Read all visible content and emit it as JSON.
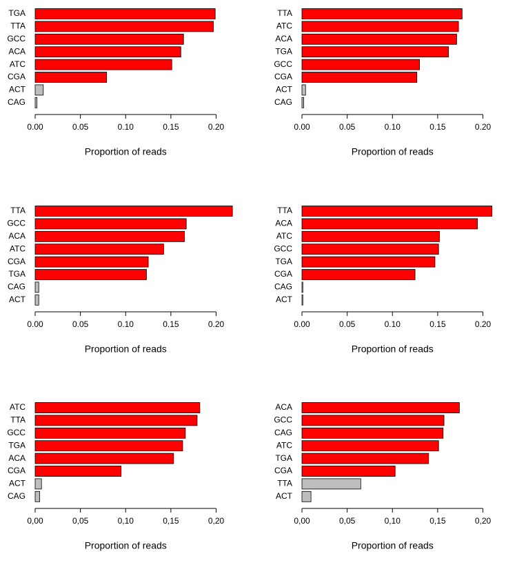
{
  "chart_data": [
    {
      "type": "bar",
      "orientation": "horizontal",
      "xlabel": "Proportion of reads",
      "categories": [
        "TGA",
        "TTA",
        "GCC",
        "ACA",
        "ATC",
        "CGA",
        "ACT",
        "CAG"
      ],
      "values": [
        0.199,
        0.197,
        0.164,
        0.161,
        0.151,
        0.079,
        0.009,
        0.002
      ],
      "colors": [
        "#ff0000",
        "#ff0000",
        "#ff0000",
        "#ff0000",
        "#ff0000",
        "#ff0000",
        "#bebebe",
        "#bebebe"
      ],
      "xlim": [
        0,
        0.2
      ],
      "xticks": [
        {
          "value": 0,
          "label": "0.00"
        },
        {
          "value": 0.05,
          "label": "0.05"
        },
        {
          "value": 0.1,
          "label": "0.10"
        },
        {
          "value": 0.15,
          "label": "0.15"
        },
        {
          "value": 0.2,
          "label": "0.20"
        }
      ]
    },
    {
      "type": "bar",
      "orientation": "horizontal",
      "xlabel": "Proportion of reads",
      "categories": [
        "TTA",
        "ATC",
        "ACA",
        "TGA",
        "GCC",
        "CGA",
        "ACT",
        "CAG"
      ],
      "values": [
        0.177,
        0.173,
        0.171,
        0.162,
        0.13,
        0.127,
        0.004,
        0.002
      ],
      "colors": [
        "#ff0000",
        "#ff0000",
        "#ff0000",
        "#ff0000",
        "#ff0000",
        "#ff0000",
        "#bebebe",
        "#bebebe"
      ],
      "xlim": [
        0,
        0.2
      ],
      "xticks": [
        {
          "value": 0,
          "label": "0.00"
        },
        {
          "value": 0.05,
          "label": "0.05"
        },
        {
          "value": 0.1,
          "label": "0.10"
        },
        {
          "value": 0.15,
          "label": "0.15"
        },
        {
          "value": 0.2,
          "label": "0.20"
        }
      ]
    },
    {
      "type": "bar",
      "orientation": "horizontal",
      "xlabel": "Proportion of reads",
      "categories": [
        "TTA",
        "GCC",
        "ACA",
        "ATC",
        "CGA",
        "TGA",
        "CAG",
        "ACT"
      ],
      "values": [
        0.218,
        0.167,
        0.165,
        0.142,
        0.125,
        0.123,
        0.004,
        0.004
      ],
      "colors": [
        "#ff0000",
        "#ff0000",
        "#ff0000",
        "#ff0000",
        "#ff0000",
        "#ff0000",
        "#bebebe",
        "#bebebe"
      ],
      "xlim": [
        0,
        0.2
      ],
      "xticks": [
        {
          "value": 0,
          "label": "0.00"
        },
        {
          "value": 0.05,
          "label": "0.05"
        },
        {
          "value": 0.1,
          "label": "0.10"
        },
        {
          "value": 0.15,
          "label": "0.15"
        },
        {
          "value": 0.2,
          "label": "0.20"
        }
      ]
    },
    {
      "type": "bar",
      "orientation": "horizontal",
      "xlabel": "Proportion of reads",
      "categories": [
        "TTA",
        "ACA",
        "ATC",
        "GCC",
        "TGA",
        "CGA",
        "CAG",
        "ACT"
      ],
      "values": [
        0.21,
        0.194,
        0.152,
        0.151,
        0.147,
        0.125,
        0.001,
        0.001
      ],
      "colors": [
        "#ff0000",
        "#ff0000",
        "#ff0000",
        "#ff0000",
        "#ff0000",
        "#ff0000",
        "#bebebe",
        "#bebebe"
      ],
      "xlim": [
        0,
        0.2
      ],
      "xticks": [
        {
          "value": 0,
          "label": "0.00"
        },
        {
          "value": 0.05,
          "label": "0.05"
        },
        {
          "value": 0.1,
          "label": "0.10"
        },
        {
          "value": 0.15,
          "label": "0.15"
        },
        {
          "value": 0.2,
          "label": "0.20"
        }
      ]
    },
    {
      "type": "bar",
      "orientation": "horizontal",
      "xlabel": "Proportion of reads",
      "categories": [
        "ATC",
        "TTA",
        "GCC",
        "TGA",
        "ACA",
        "CGA",
        "ACT",
        "CAG"
      ],
      "values": [
        0.182,
        0.179,
        0.166,
        0.163,
        0.153,
        0.095,
        0.007,
        0.005
      ],
      "colors": [
        "#ff0000",
        "#ff0000",
        "#ff0000",
        "#ff0000",
        "#ff0000",
        "#ff0000",
        "#bebebe",
        "#bebebe"
      ],
      "xlim": [
        0,
        0.2
      ],
      "xticks": [
        {
          "value": 0,
          "label": "0,00"
        },
        {
          "value": 0.05,
          "label": "0,05"
        },
        {
          "value": 0.1,
          "label": "0,10"
        },
        {
          "value": 0.15,
          "label": "0,15"
        },
        {
          "value": 0.2,
          "label": "0,20"
        }
      ]
    },
    {
      "type": "bar",
      "orientation": "horizontal",
      "xlabel": "Proportion of reads",
      "categories": [
        "ACA",
        "GCC",
        "CAG",
        "ATC",
        "TGA",
        "CGA",
        "TTA",
        "ACT"
      ],
      "values": [
        0.174,
        0.157,
        0.156,
        0.151,
        0.14,
        0.103,
        0.065,
        0.01
      ],
      "colors": [
        "#ff0000",
        "#ff0000",
        "#ff0000",
        "#ff0000",
        "#ff0000",
        "#ff0000",
        "#bebebe",
        "#bebebe"
      ],
      "xlim": [
        0,
        0.2
      ],
      "xticks": [
        {
          "value": 0,
          "label": "0,00"
        },
        {
          "value": 0.05,
          "label": "0,05"
        },
        {
          "value": 0.1,
          "label": "0,10"
        },
        {
          "value": 0.15,
          "label": "0,15"
        },
        {
          "value": 0.2,
          "label": "0,20"
        }
      ]
    }
  ]
}
